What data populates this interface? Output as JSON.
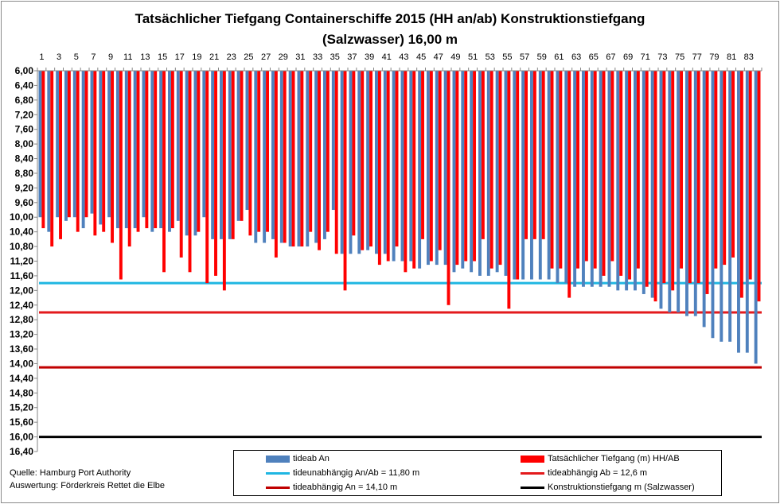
{
  "title_line1": "Tatsächlicher Tiefgang Containerschiffe 2015 (HH an/ab) Konstruktionstiefgang",
  "title_line2": "(Salzwasser) 16,00 m",
  "source_line1": "Quelle: Hamburg Port Authority",
  "source_line2": "Auswertung: Förderkreis Rettet die Elbe",
  "colors": {
    "tideab": "#4f81bd",
    "tatsaechlich": "#ff0000",
    "tideunabhaengig": "#1fb6e2",
    "tideab_line": "#e31a1c",
    "tidean_line": "#c00000",
    "konstruktion": "#000000"
  },
  "legend": [
    {
      "label": "tideab An",
      "kind": "box",
      "color": "#4f81bd"
    },
    {
      "label": "Tatsächlicher Tiefgang (m) HH/AB",
      "kind": "box",
      "color": "#ff0000"
    },
    {
      "label": "tideunabhängig An/Ab = 11,80 m",
      "kind": "line",
      "color": "#1fb6e2"
    },
    {
      "label": "tideabhängig Ab = 12,6 m",
      "kind": "line",
      "color": "#e31a1c"
    },
    {
      "label": "tideabhängig An = 14,10 m",
      "kind": "line",
      "color": "#c00000"
    },
    {
      "label": "Konstruktionstiefgang  m (Salzwasser)",
      "kind": "line",
      "color": "#000000"
    }
  ],
  "chart_data": {
    "type": "bar",
    "orientation": "vertical, inverted y-axis (depth)",
    "y_axis_labels": [
      "6,00",
      "6,40",
      "6,80",
      "7,20",
      "7,60",
      "8,00",
      "8,40",
      "8,80",
      "9,20",
      "9,60",
      "10,00",
      "10,40",
      "10,80",
      "11,20",
      "11,60",
      "12,00",
      "12,40",
      "12,80",
      "13,20",
      "13,60",
      "14,00",
      "14,40",
      "14,80",
      "15,20",
      "15,60",
      "16,00",
      "16,40"
    ],
    "ylim": [
      6.0,
      16.4
    ],
    "x_tick_labels": [
      "1",
      "3",
      "5",
      "7",
      "9",
      "11",
      "13",
      "15",
      "17",
      "19",
      "21",
      "23",
      "25",
      "27",
      "29",
      "31",
      "33",
      "35",
      "37",
      "39",
      "41",
      "43",
      "45",
      "47",
      "49",
      "51",
      "53",
      "55",
      "57",
      "59",
      "61",
      "63",
      "65",
      "67",
      "69",
      "71",
      "73",
      "75",
      "77",
      "79",
      "81",
      "83"
    ],
    "categories": [
      1,
      2,
      3,
      4,
      5,
      6,
      7,
      8,
      9,
      10,
      11,
      12,
      13,
      14,
      15,
      16,
      17,
      18,
      19,
      20,
      21,
      22,
      23,
      24,
      25,
      26,
      27,
      28,
      29,
      30,
      31,
      32,
      33,
      34,
      35,
      36,
      37,
      38,
      39,
      40,
      41,
      42,
      43,
      44,
      45,
      46,
      47,
      48,
      49,
      50,
      51,
      52,
      53,
      54,
      55,
      56,
      57,
      58,
      59,
      60,
      61,
      62,
      63,
      64,
      65,
      66,
      67,
      68,
      69,
      70,
      71,
      72,
      73,
      74,
      75,
      76,
      77,
      78,
      79,
      80,
      81,
      82,
      83,
      84
    ],
    "series": [
      {
        "name": "tideab An",
        "values": [
          10.0,
          10.4,
          10.0,
          10.1,
          10.0,
          10.3,
          9.9,
          10.2,
          10.0,
          10.3,
          10.3,
          10.3,
          10.0,
          10.4,
          10.3,
          10.4,
          10.1,
          10.5,
          10.5,
          10.0,
          10.6,
          10.6,
          10.6,
          10.1,
          9.8,
          10.7,
          10.7,
          10.6,
          10.7,
          10.8,
          10.8,
          10.8,
          10.7,
          10.6,
          9.8,
          11.0,
          11.0,
          11.0,
          10.9,
          11.0,
          11.0,
          11.2,
          11.2,
          11.2,
          11.4,
          11.3,
          11.3,
          11.3,
          11.5,
          11.4,
          11.5,
          11.6,
          11.6,
          11.5,
          11.6,
          11.7,
          11.7,
          11.7,
          11.7,
          11.7,
          11.8,
          11.8,
          11.9,
          11.9,
          11.9,
          11.9,
          11.9,
          12.0,
          12.0,
          12.0,
          12.1,
          12.2,
          12.5,
          12.6,
          12.6,
          12.7,
          12.7,
          13.0,
          13.3,
          13.4,
          13.4,
          13.7,
          13.7,
          14.0
        ]
      },
      {
        "name": "Tatsächlicher Tiefgang (m) HH/AB",
        "values": [
          10.3,
          10.8,
          10.6,
          10.0,
          10.4,
          10.0,
          10.5,
          10.4,
          10.7,
          11.7,
          10.8,
          10.4,
          10.3,
          10.3,
          11.5,
          10.3,
          11.1,
          11.5,
          10.4,
          11.8,
          11.6,
          12.0,
          10.6,
          10.1,
          10.5,
          10.4,
          10.4,
          11.1,
          10.7,
          10.8,
          10.8,
          10.4,
          10.9,
          10.4,
          11.0,
          12.0,
          10.5,
          10.9,
          10.8,
          11.3,
          11.2,
          10.8,
          11.5,
          11.4,
          10.6,
          11.2,
          10.9,
          12.4,
          11.3,
          11.2,
          11.2,
          10.6,
          11.4,
          11.3,
          12.5,
          11.7,
          10.6,
          10.6,
          10.6,
          11.4,
          11.4,
          12.2,
          11.4,
          11.2,
          11.4,
          11.6,
          11.2,
          11.6,
          11.7,
          11.4,
          11.9,
          12.3,
          11.8,
          12.0,
          11.4,
          11.8,
          11.8,
          12.1,
          11.4,
          11.3,
          11.1,
          12.2,
          11.7,
          12.3
        ]
      }
    ],
    "reference_lines": [
      {
        "name": "tideunabhängig An/Ab = 11,80 m",
        "value": 11.8
      },
      {
        "name": "tideabhängig Ab = 12,6 m",
        "value": 12.6
      },
      {
        "name": "tideabhängig An = 14,10 m",
        "value": 14.1
      },
      {
        "name": "Konstruktionstiefgang  m (Salzwasser)",
        "value": 16.0
      }
    ],
    "grid": false,
    "legend_position": "bottom"
  }
}
